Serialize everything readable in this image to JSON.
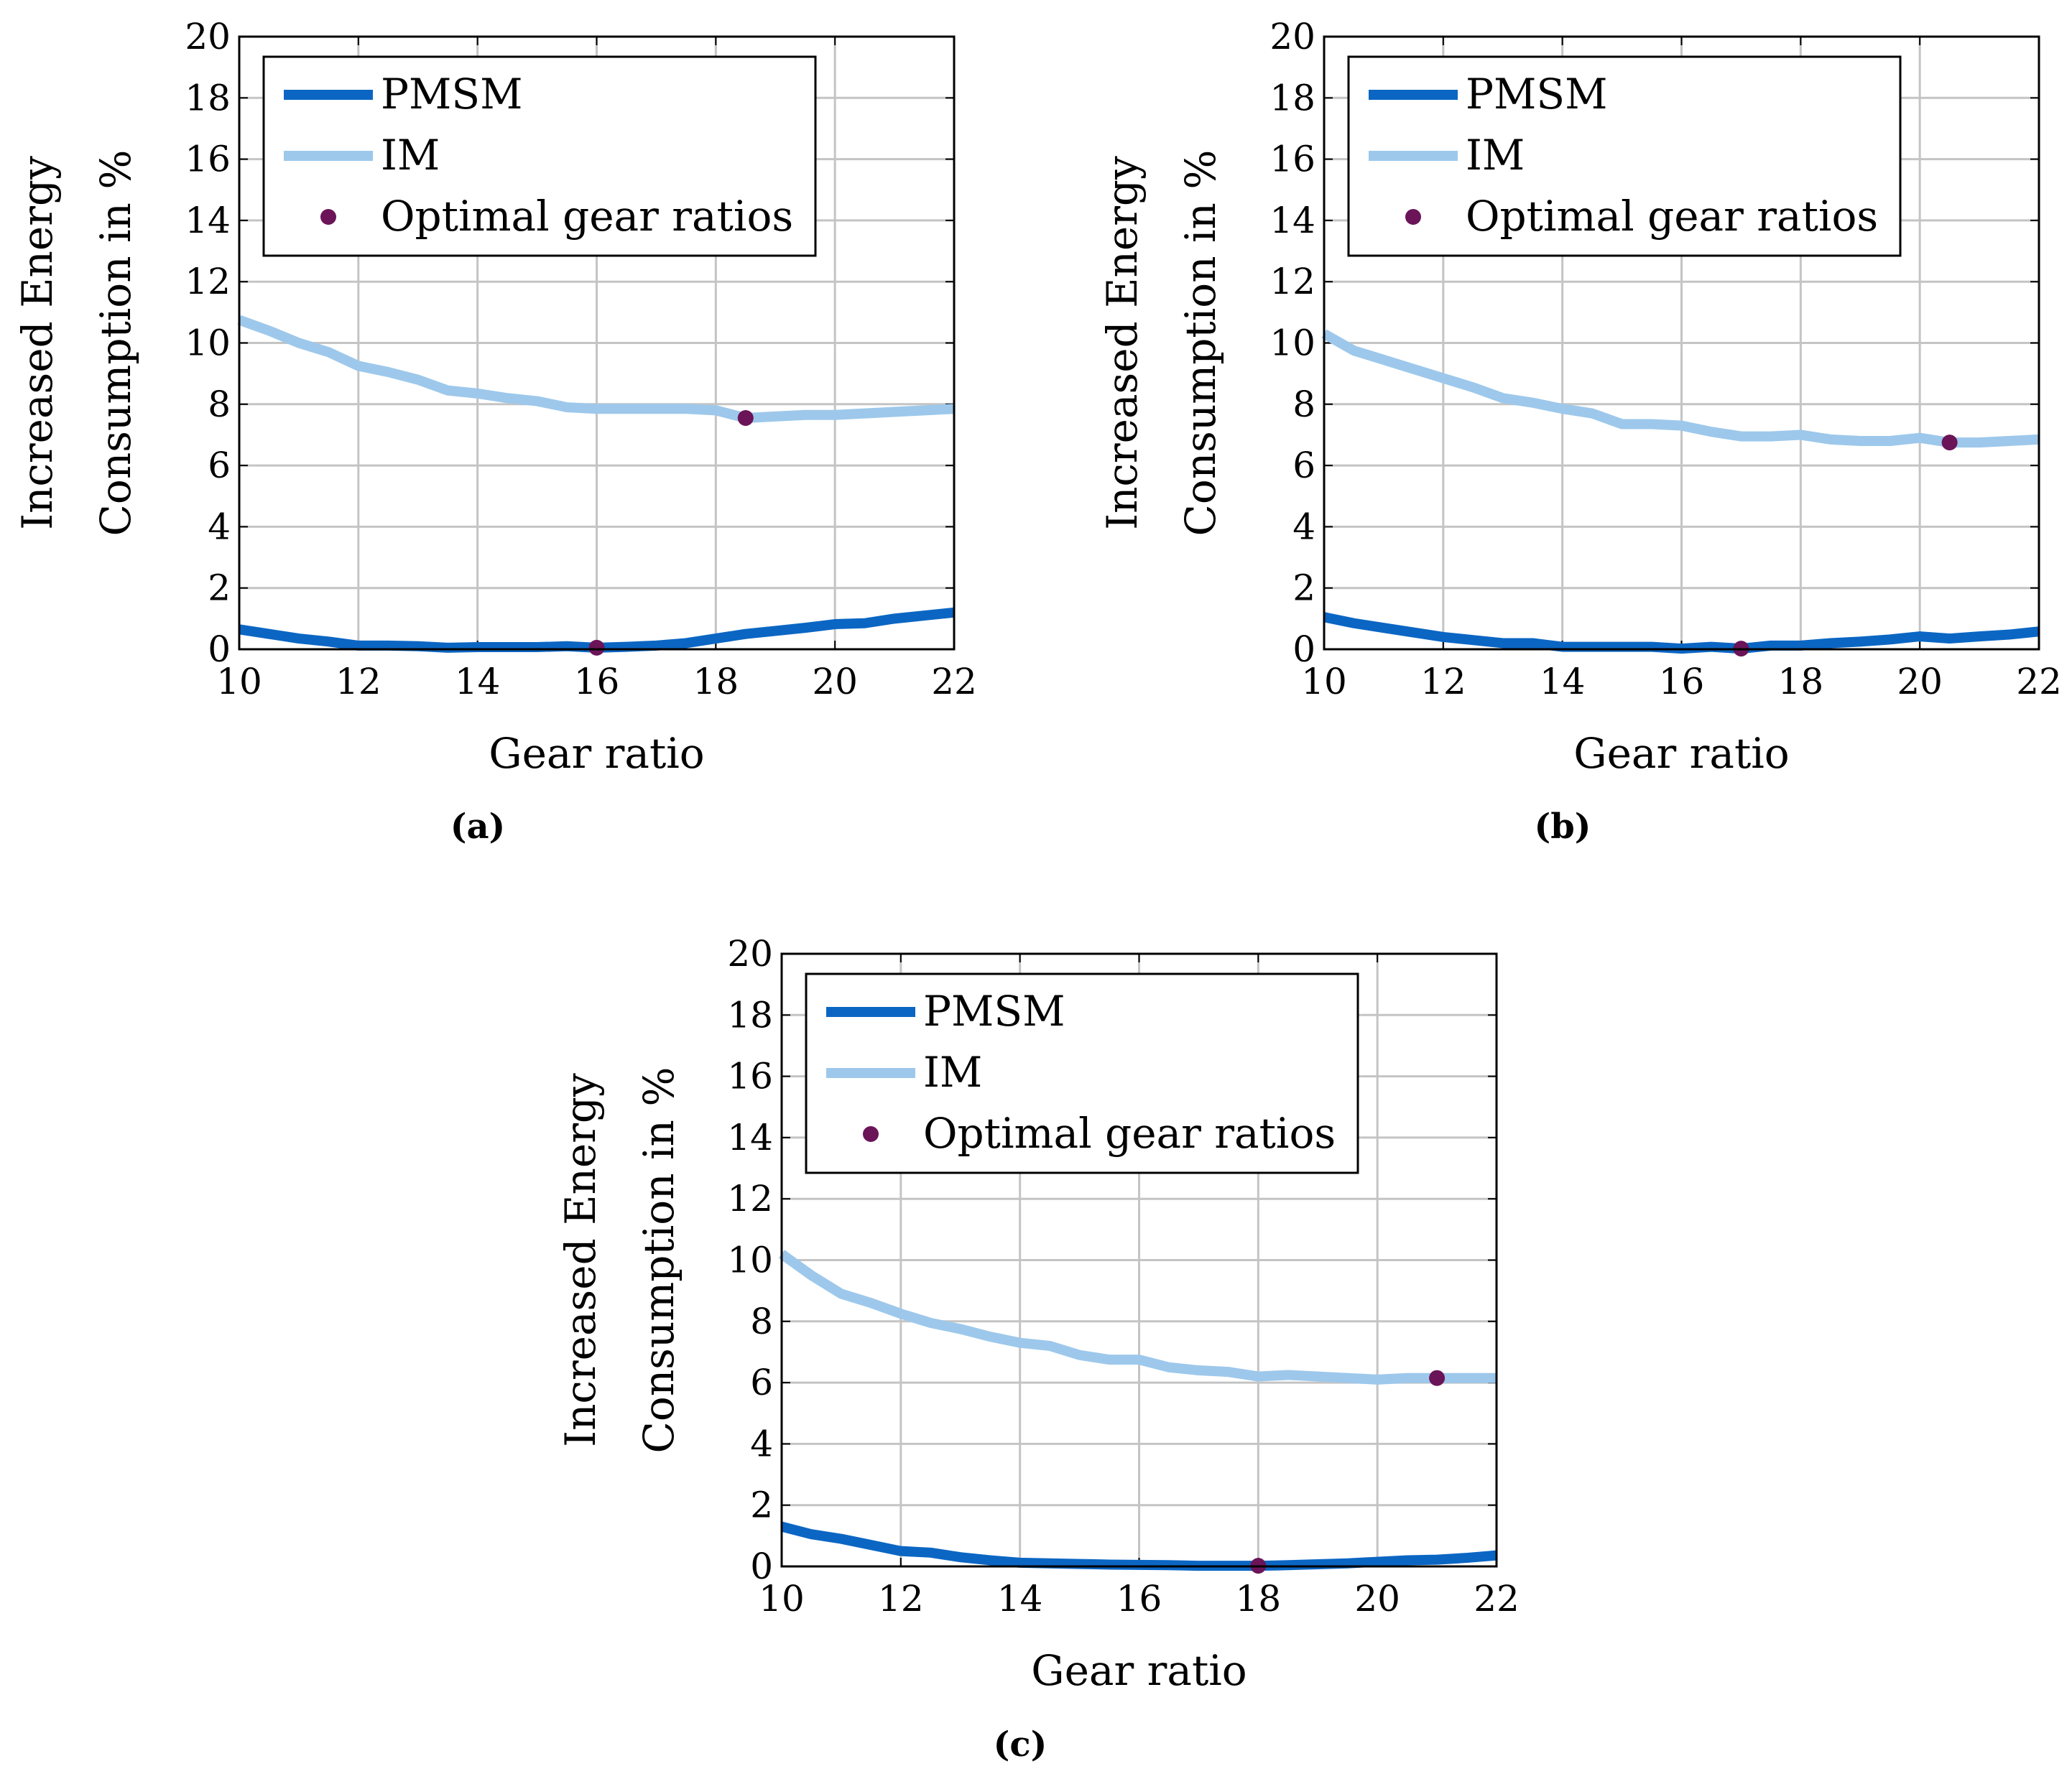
{
  "chart_data": [
    {
      "type": "line",
      "caption": "(a)",
      "xlabel": "Gear ratio",
      "ylabel_lines": [
        "Increased Energy",
        "Consumption in %"
      ],
      "xlim": [
        10,
        22
      ],
      "ylim": [
        0,
        20
      ],
      "xticks": [
        10,
        12,
        14,
        16,
        18,
        20,
        22
      ],
      "yticks": [
        0,
        2,
        4,
        6,
        8,
        10,
        12,
        14,
        16,
        18,
        20
      ],
      "grid": true,
      "legend_position": "top-left",
      "x": [
        10,
        10.5,
        11,
        11.5,
        12,
        12.5,
        13,
        13.5,
        14,
        14.5,
        15,
        15.5,
        16,
        16.5,
        17,
        17.5,
        18,
        18.5,
        19,
        19.5,
        20,
        20.5,
        21,
        21.5,
        22
      ],
      "series": [
        {
          "name": "PMSM",
          "color": "#0b66c3",
          "values": [
            0.65,
            0.5,
            0.35,
            0.25,
            0.12,
            0.12,
            0.1,
            0.05,
            0.07,
            0.07,
            0.07,
            0.1,
            0.05,
            0.08,
            0.12,
            0.2,
            0.35,
            0.5,
            0.6,
            0.7,
            0.82,
            0.85,
            1.0,
            1.1,
            1.2
          ]
        },
        {
          "name": "IM",
          "color": "#9dc8eb",
          "values": [
            10.75,
            10.4,
            10.0,
            9.7,
            9.25,
            9.05,
            8.8,
            8.45,
            8.35,
            8.2,
            8.1,
            7.9,
            7.85,
            7.85,
            7.85,
            7.85,
            7.8,
            7.55,
            7.6,
            7.65,
            7.65,
            7.7,
            7.75,
            7.8,
            7.85
          ]
        }
      ],
      "optimal": {
        "name": "Optimal gear ratios",
        "color": "#6b1458",
        "points": [
          {
            "x": 16,
            "y": 0.05
          },
          {
            "x": 18.5,
            "y": 7.55
          }
        ]
      }
    },
    {
      "type": "line",
      "caption": "(b)",
      "xlabel": "Gear ratio",
      "ylabel_lines": [
        "Increased Energy",
        "Consumption in %"
      ],
      "xlim": [
        10,
        22
      ],
      "ylim": [
        0,
        20
      ],
      "xticks": [
        10,
        12,
        14,
        16,
        18,
        20,
        22
      ],
      "yticks": [
        0,
        2,
        4,
        6,
        8,
        10,
        12,
        14,
        16,
        18,
        20
      ],
      "grid": true,
      "legend_position": "top-left",
      "x": [
        10,
        10.5,
        11,
        11.5,
        12,
        12.5,
        13,
        13.5,
        14,
        14.5,
        15,
        15.5,
        16,
        16.5,
        17,
        17.5,
        18,
        18.5,
        19,
        19.5,
        20,
        20.5,
        21,
        21.5,
        22
      ],
      "series": [
        {
          "name": "PMSM",
          "color": "#0b66c3",
          "values": [
            1.05,
            0.85,
            0.7,
            0.55,
            0.4,
            0.3,
            0.2,
            0.2,
            0.08,
            0.08,
            0.08,
            0.08,
            0.02,
            0.08,
            0.02,
            0.12,
            0.12,
            0.2,
            0.25,
            0.32,
            0.42,
            0.35,
            0.42,
            0.48,
            0.58
          ]
        },
        {
          "name": "IM",
          "color": "#9dc8eb",
          "values": [
            10.3,
            9.75,
            9.45,
            9.15,
            8.85,
            8.55,
            8.2,
            8.05,
            7.85,
            7.7,
            7.35,
            7.35,
            7.3,
            7.1,
            6.95,
            6.95,
            7.0,
            6.85,
            6.8,
            6.8,
            6.9,
            6.75,
            6.75,
            6.8,
            6.85
          ]
        }
      ],
      "optimal": {
        "name": "Optimal gear ratios",
        "color": "#6b1458",
        "points": [
          {
            "x": 17,
            "y": 0.02
          },
          {
            "x": 20.5,
            "y": 6.75
          }
        ]
      }
    },
    {
      "type": "line",
      "caption": "(c)",
      "xlabel": "Gear ratio",
      "ylabel_lines": [
        "Increased Energy",
        "Consumption in %"
      ],
      "xlim": [
        10,
        22
      ],
      "ylim": [
        0,
        20
      ],
      "xticks": [
        10,
        12,
        14,
        16,
        18,
        20,
        22
      ],
      "yticks": [
        0,
        2,
        4,
        6,
        8,
        10,
        12,
        14,
        16,
        18,
        20
      ],
      "grid": true,
      "legend_position": "top-left",
      "x": [
        10,
        10.5,
        11,
        11.5,
        12,
        12.5,
        13,
        13.5,
        14,
        14.5,
        15,
        15.5,
        16,
        16.5,
        17,
        17.5,
        18,
        18.5,
        19,
        19.5,
        20,
        20.5,
        21,
        21.5,
        22
      ],
      "series": [
        {
          "name": "PMSM",
          "color": "#0b66c3",
          "values": [
            1.3,
            1.05,
            0.9,
            0.7,
            0.5,
            0.45,
            0.3,
            0.2,
            0.12,
            0.1,
            0.08,
            0.06,
            0.05,
            0.04,
            0.02,
            0.02,
            0.02,
            0.04,
            0.07,
            0.1,
            0.15,
            0.2,
            0.22,
            0.28,
            0.36
          ]
        },
        {
          "name": "IM",
          "color": "#9dc8eb",
          "values": [
            10.2,
            9.5,
            8.9,
            8.6,
            8.25,
            7.95,
            7.75,
            7.5,
            7.3,
            7.2,
            6.9,
            6.75,
            6.75,
            6.5,
            6.4,
            6.35,
            6.2,
            6.25,
            6.2,
            6.15,
            6.1,
            6.15,
            6.15,
            6.15,
            6.15
          ]
        }
      ],
      "optimal": {
        "name": "Optimal gear ratios",
        "color": "#6b1458",
        "points": [
          {
            "x": 18,
            "y": 0.02
          },
          {
            "x": 21,
            "y": 6.15
          }
        ]
      }
    }
  ]
}
